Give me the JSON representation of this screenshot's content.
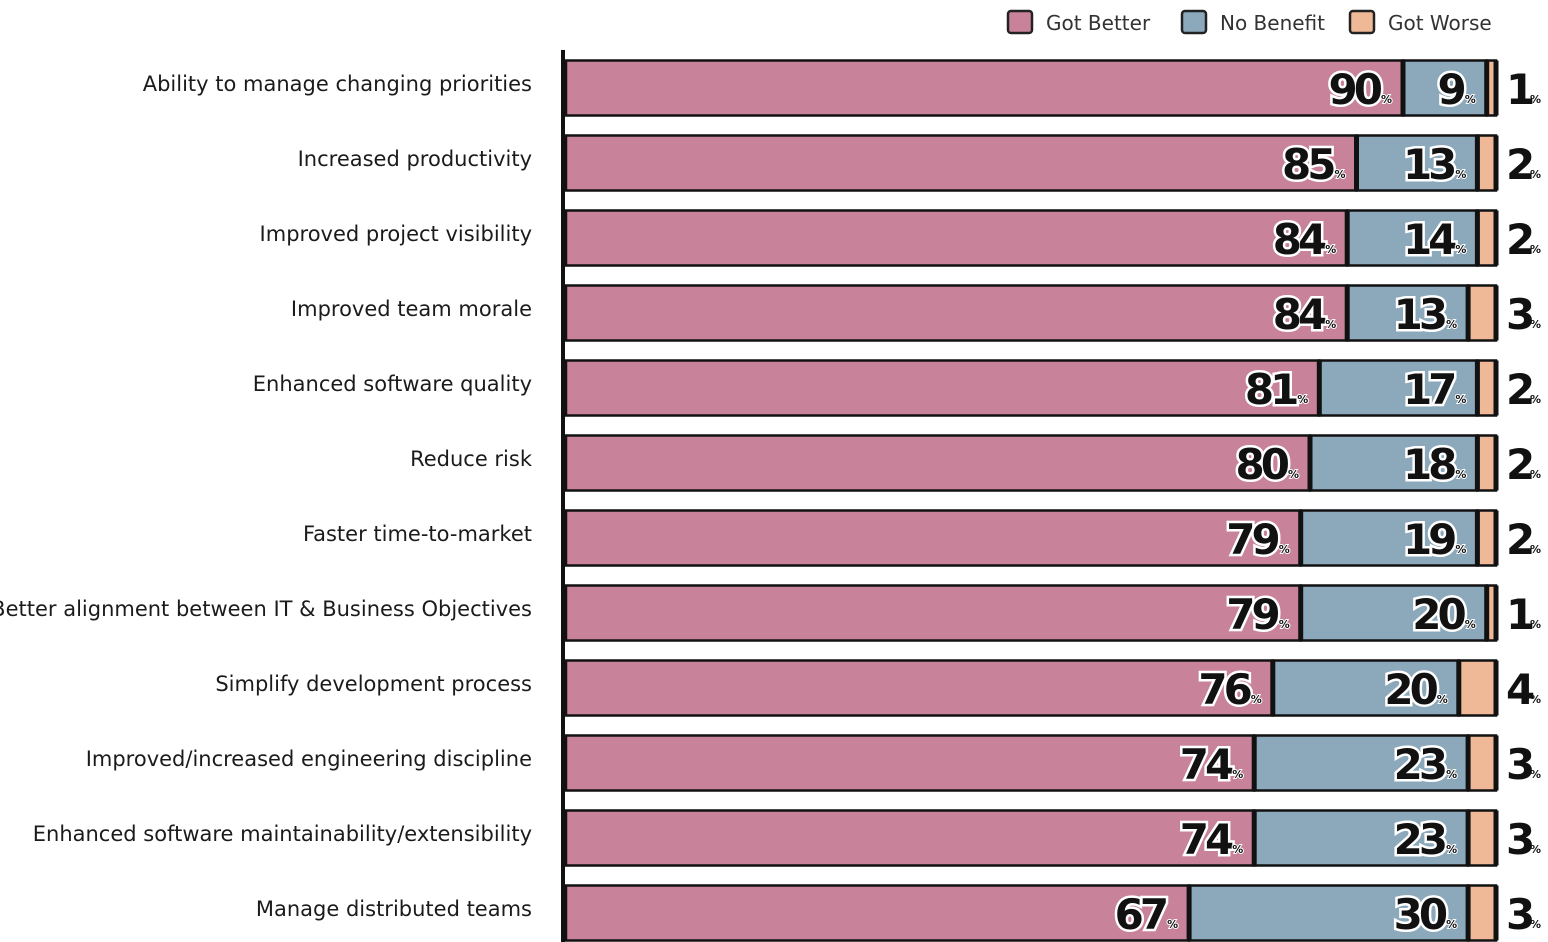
{
  "chart_data": {
    "type": "bar",
    "stacked": true,
    "orientation": "horizontal",
    "percent_symbol": "%",
    "xlim": [
      0,
      100
    ],
    "legend_position": "top-right",
    "categories": [
      "Ability to manage changing priorities",
      "Increased productivity",
      "Improved project visibility",
      "Improved team morale",
      "Enhanced software quality",
      "Reduce risk",
      "Faster time-to-market",
      "Better alignment between IT & Business Objectives",
      "Simplify development process",
      "Improved/increased engineering discipline",
      "Enhanced software maintainability/extensibility",
      "Manage distributed teams"
    ],
    "series": [
      {
        "name": "Got Better",
        "color": "#c8839b",
        "values": [
          90,
          85,
          84,
          84,
          81,
          80,
          79,
          79,
          76,
          74,
          74,
          67
        ]
      },
      {
        "name": "No Benefit",
        "color": "#8ca9bc",
        "values": [
          9,
          13,
          14,
          13,
          17,
          18,
          19,
          20,
          20,
          23,
          23,
          30
        ]
      },
      {
        "name": "Got Worse",
        "color": "#efb896",
        "values": [
          1,
          2,
          2,
          3,
          2,
          2,
          2,
          1,
          4,
          3,
          3,
          3
        ]
      }
    ]
  }
}
